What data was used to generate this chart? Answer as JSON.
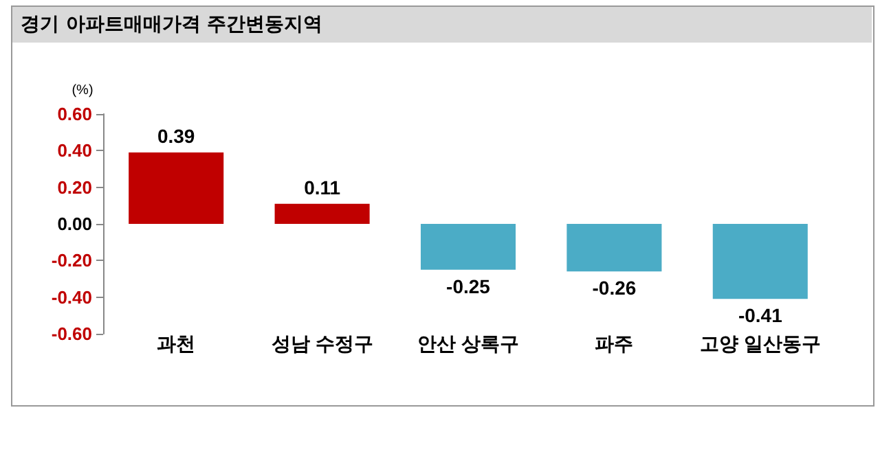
{
  "chart_data": {
    "type": "bar",
    "title": "경기 아파트매매가격 주간변동지역",
    "ylabel": "(%)",
    "categories": [
      "과천",
      "성남 수정구",
      "안산 상록구",
      "파주",
      "고양 일산동구"
    ],
    "values": [
      0.39,
      0.11,
      -0.25,
      -0.26,
      -0.41
    ],
    "colors": [
      "#c00000",
      "#c00000",
      "#4bacc6",
      "#4bacc6",
      "#4bacc6"
    ],
    "ylim": [
      -0.6,
      0.6
    ],
    "yticks": [
      {
        "value": -0.6,
        "label": "-0.60"
      },
      {
        "value": -0.4,
        "label": "-0.40"
      },
      {
        "value": -0.2,
        "label": "-0.20"
      },
      {
        "value": 0,
        "label": "0.00"
      },
      {
        "value": 0.2,
        "label": "0.20"
      },
      {
        "value": 0.4,
        "label": "0.40"
      },
      {
        "value": 0.6,
        "label": "0.60"
      }
    ],
    "data_labels": true,
    "grid": false
  }
}
